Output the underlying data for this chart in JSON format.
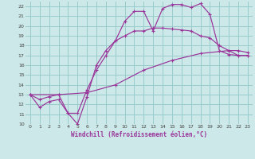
{
  "xlabel": "Windchill (Refroidissement éolien,°C)",
  "bg_color": "#cce8e8",
  "grid_color": "#99cccc",
  "line_color": "#993399",
  "xlim": [
    -0.5,
    23.5
  ],
  "ylim": [
    10,
    22.5
  ],
  "xticks": [
    0,
    1,
    2,
    3,
    4,
    5,
    6,
    7,
    8,
    9,
    10,
    11,
    12,
    13,
    14,
    15,
    16,
    17,
    18,
    19,
    20,
    21,
    22,
    23
  ],
  "yticks": [
    10,
    11,
    12,
    13,
    14,
    15,
    16,
    17,
    18,
    19,
    20,
    21,
    22
  ],
  "line1_x": [
    0,
    1,
    2,
    3,
    4,
    5,
    6,
    7,
    8,
    9,
    10,
    11,
    12,
    13,
    14,
    15,
    16,
    17,
    18,
    19,
    20,
    21,
    22,
    23
  ],
  "line1_y": [
    13.0,
    11.7,
    12.3,
    12.5,
    11.1,
    10.0,
    12.8,
    16.0,
    17.5,
    18.5,
    20.5,
    21.5,
    21.5,
    19.5,
    21.8,
    22.2,
    22.2,
    21.9,
    22.3,
    21.2,
    17.5,
    17.1,
    17.0,
    17.0
  ],
  "line2_x": [
    0,
    1,
    2,
    3,
    4,
    5,
    6,
    7,
    8,
    9,
    10,
    11,
    12,
    13,
    14,
    15,
    16,
    17,
    18,
    19,
    20,
    21,
    22,
    23
  ],
  "line2_y": [
    13.0,
    12.5,
    12.8,
    13.0,
    11.1,
    11.1,
    13.5,
    15.5,
    17.0,
    18.5,
    19.0,
    19.5,
    19.5,
    19.8,
    19.8,
    19.7,
    19.6,
    19.5,
    19.0,
    18.8,
    18.0,
    17.5,
    17.0,
    17.0
  ],
  "line3_x": [
    0,
    3,
    6,
    9,
    12,
    15,
    18,
    21,
    22,
    23
  ],
  "line3_y": [
    13.0,
    13.0,
    13.2,
    14.0,
    15.5,
    16.5,
    17.2,
    17.5,
    17.5,
    17.3
  ]
}
